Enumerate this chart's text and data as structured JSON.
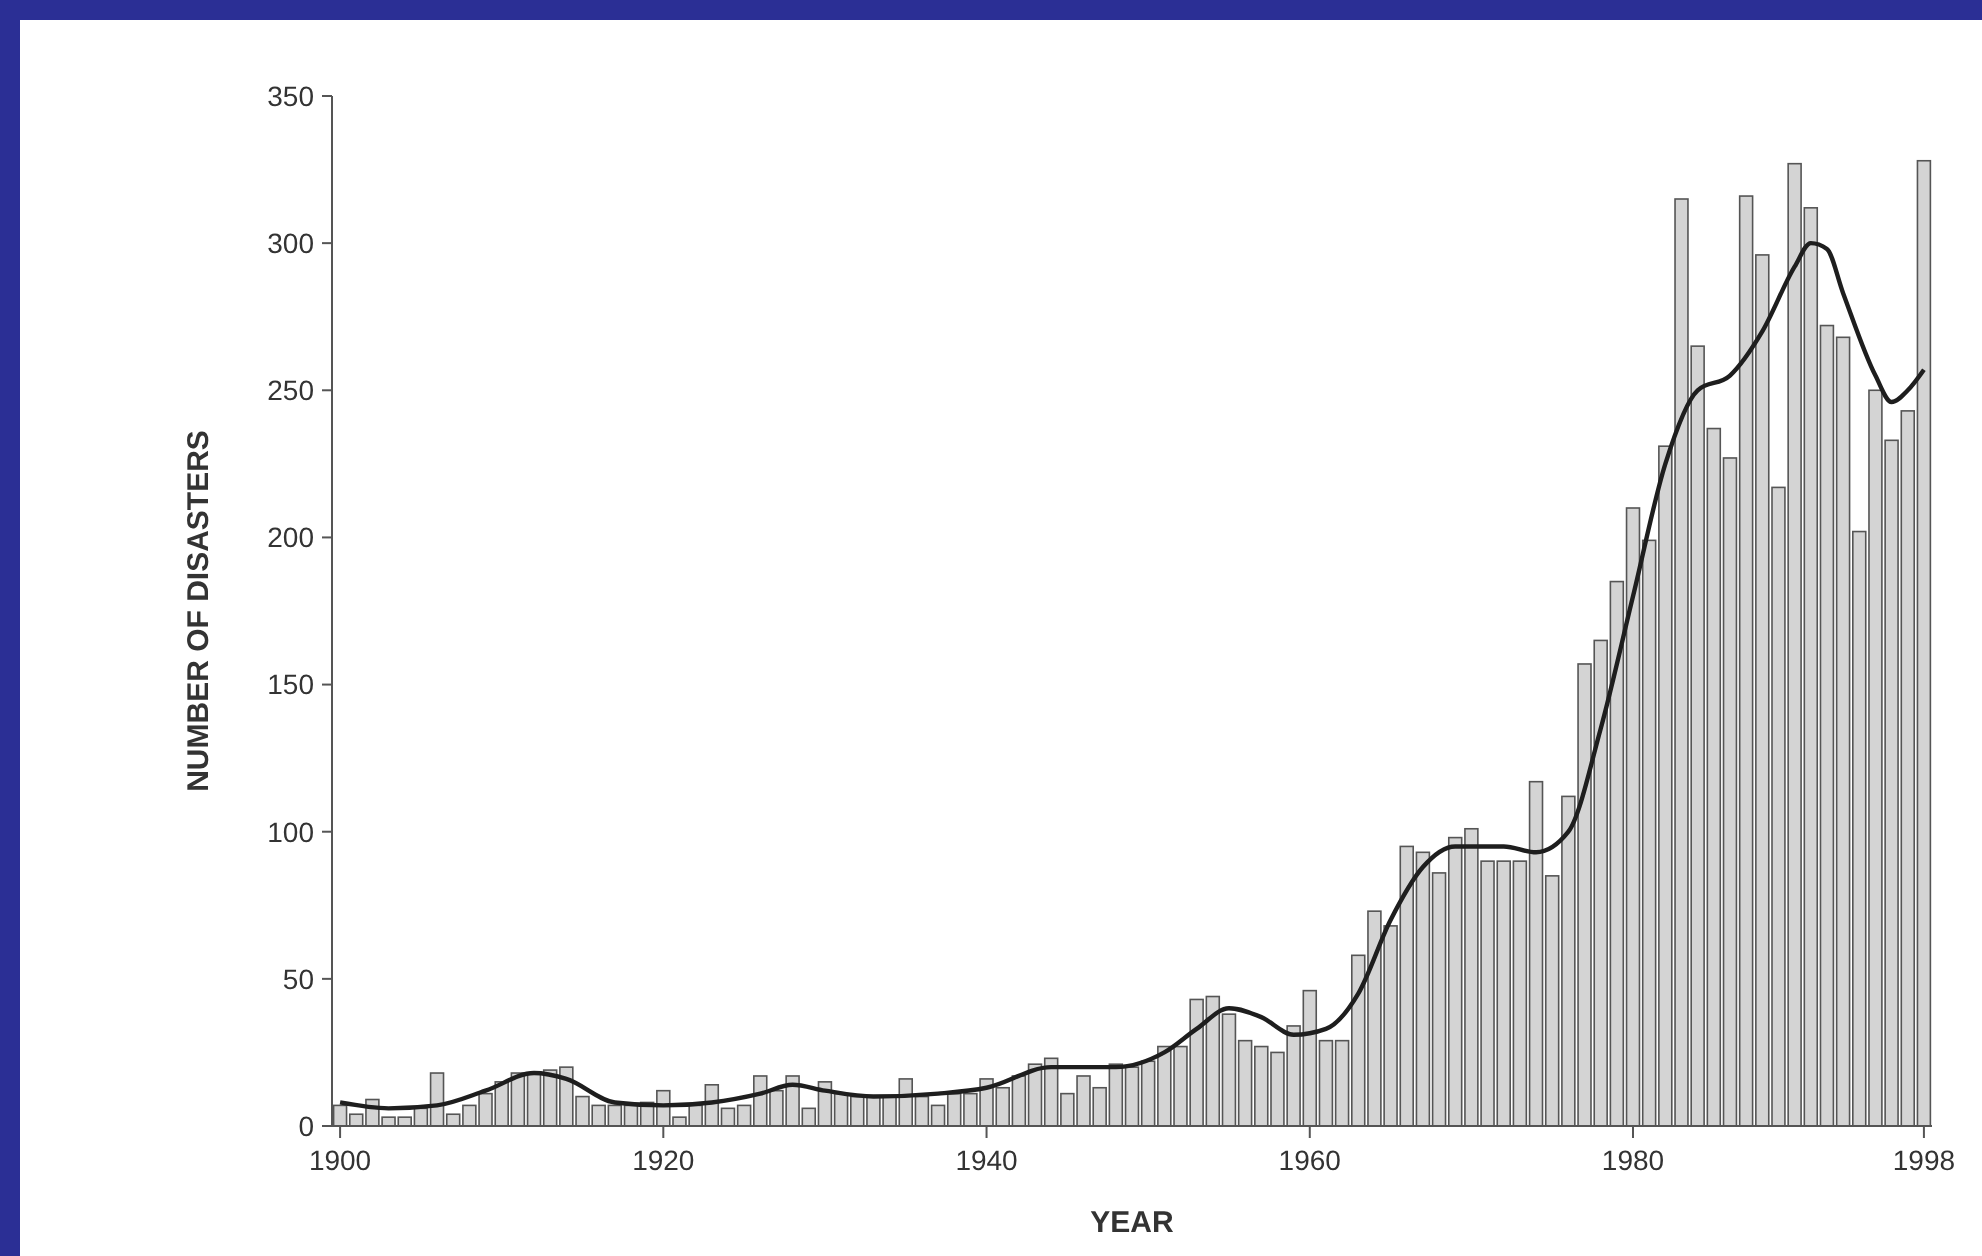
{
  "chart_data": {
    "type": "bar",
    "xlabel": "YEAR",
    "ylabel": "NUMBER OF DISASTERS",
    "xlim": [
      1899.5,
      1998.5
    ],
    "ylim": [
      0,
      350
    ],
    "xticks": [
      1900,
      1920,
      1940,
      1960,
      1980,
      1998
    ],
    "yticks": [
      0,
      50,
      100,
      150,
      200,
      250,
      300,
      350
    ],
    "grid": false,
    "series": [
      {
        "color": "#d4d4d4",
        "x": [
          1900,
          1901,
          1902,
          1903,
          1904,
          1905,
          1906,
          1907,
          1908,
          1909,
          1910,
          1911,
          1912,
          1913,
          1914,
          1915,
          1916,
          1917,
          1918,
          1919,
          1920,
          1921,
          1922,
          1923,
          1924,
          1925,
          1926,
          1927,
          1928,
          1929,
          1930,
          1931,
          1932,
          1933,
          1934,
          1935,
          1936,
          1937,
          1938,
          1939,
          1940,
          1941,
          1942,
          1943,
          1944,
          1945,
          1946,
          1947,
          1948,
          1949,
          1950,
          1951,
          1952,
          1953,
          1954,
          1955,
          1956,
          1957,
          1958,
          1959,
          1960,
          1961,
          1962,
          1963,
          1964,
          1965,
          1966,
          1967,
          1968,
          1969,
          1970,
          1971,
          1972,
          1973,
          1974,
          1975,
          1976,
          1977,
          1978,
          1979,
          1980,
          1981,
          1982,
          1983,
          1984,
          1985,
          1986,
          1987,
          1988,
          1989,
          1990,
          1991,
          1992,
          1993,
          1994,
          1995,
          1996,
          1997,
          1998
        ],
        "values": [
          7,
          4,
          9,
          3,
          3,
          6,
          18,
          4,
          7,
          11,
          15,
          18,
          18,
          19,
          20,
          10,
          7,
          7,
          7,
          8,
          12,
          3,
          7,
          14,
          6,
          7,
          17,
          12,
          17,
          6,
          15,
          11,
          10,
          10,
          10,
          16,
          10,
          7,
          11,
          11,
          16,
          13,
          17,
          21,
          23,
          11,
          17,
          13,
          21,
          20,
          22,
          27,
          27,
          43,
          44,
          38,
          29,
          27,
          25,
          34,
          46,
          29,
          29,
          58,
          73,
          68,
          95,
          93,
          86,
          98,
          101,
          90,
          90,
          90,
          117,
          85,
          112,
          157,
          165,
          185,
          210,
          199,
          231,
          315,
          265,
          237,
          227,
          316,
          296,
          217,
          327,
          312,
          272,
          268,
          202,
          250,
          233,
          243,
          328
        ]
      },
      {
        "type": "line",
        "color": "#1e1e1e",
        "marker": "none",
        "line_style": "solid",
        "x": [
          1900,
          1903,
          1906,
          1909,
          1912,
          1914,
          1917,
          1920,
          1923,
          1926,
          1928,
          1930,
          1933,
          1937,
          1940,
          1944,
          1948,
          1951,
          1953,
          1955,
          1957,
          1959,
          1961,
          1963,
          1965,
          1967,
          1969,
          1972,
          1974,
          1976,
          1978,
          1980,
          1982,
          1984,
          1986,
          1988,
          1990,
          1991,
          1992,
          1993,
          1995,
          1996,
          1997,
          1998
        ],
        "values": [
          8,
          6,
          7,
          12,
          18,
          16,
          8,
          7,
          8,
          11,
          14,
          12,
          10,
          11,
          13,
          20,
          20,
          25,
          33,
          40,
          37,
          31,
          33,
          45,
          70,
          88,
          95,
          95,
          93,
          100,
          135,
          180,
          225,
          250,
          255,
          270,
          292,
          300,
          298,
          283,
          255,
          246,
          250,
          257
        ]
      }
    ]
  }
}
